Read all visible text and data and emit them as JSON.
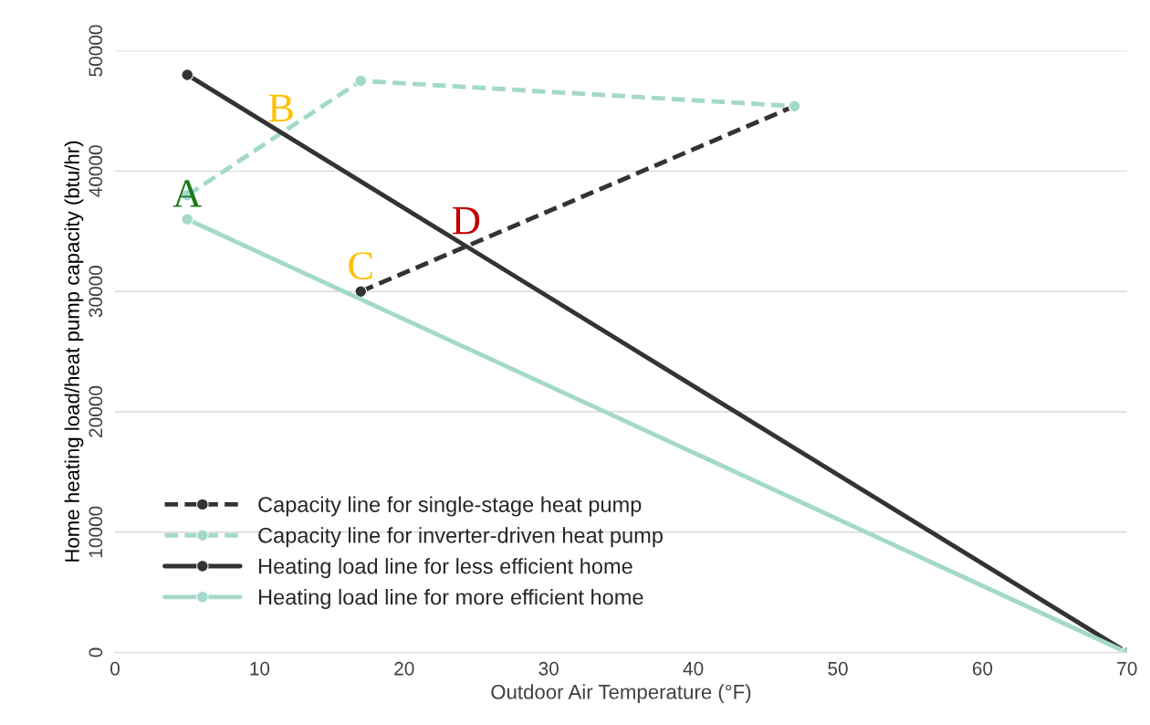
{
  "chart_data": {
    "type": "line",
    "xlabel": "Outdoor Air Temperature (°F)",
    "ylabel": "Home heating load/heat pump capacity (btu/hr)",
    "xlim": [
      0,
      70
    ],
    "xticks": [
      0,
      10,
      20,
      30,
      40,
      50,
      60,
      70
    ],
    "ylim": [
      0,
      50000
    ],
    "yticks": [
      0,
      10000,
      20000,
      30000,
      40000,
      50000
    ],
    "grid": "y",
    "legend": "bottom left",
    "marker": "circle",
    "series": [
      {
        "name": "Capacity line for single-stage heat pump",
        "color": "#333333",
        "line_style": "dashed",
        "x": [
          17,
          47
        ],
        "values": [
          30000,
          45400
        ]
      },
      {
        "name": "Capacity line for inverter-driven heat pump",
        "color": "#a3d9cb",
        "line_style": "dashed",
        "x": [
          5,
          17,
          47
        ],
        "values": [
          38000,
          47500,
          45400
        ]
      },
      {
        "name": "Heating load line for less efficient home",
        "color": "#333333",
        "line_style": "solid",
        "x": [
          5,
          70
        ],
        "values": [
          48000,
          0
        ]
      },
      {
        "name": "Heating load line for more efficient home",
        "color": "#a3d9cb",
        "line_style": "solid",
        "x": [
          5,
          70
        ],
        "values": [
          36000,
          0
        ]
      }
    ],
    "annotations": [
      {
        "text": "A",
        "x": 5,
        "y": 36000
      },
      {
        "text": "B",
        "x": 11.5,
        "y": 43100
      },
      {
        "text": "C",
        "x": 17,
        "y": 30000
      },
      {
        "text": "D",
        "x": 24.3,
        "y": 33750
      }
    ]
  }
}
